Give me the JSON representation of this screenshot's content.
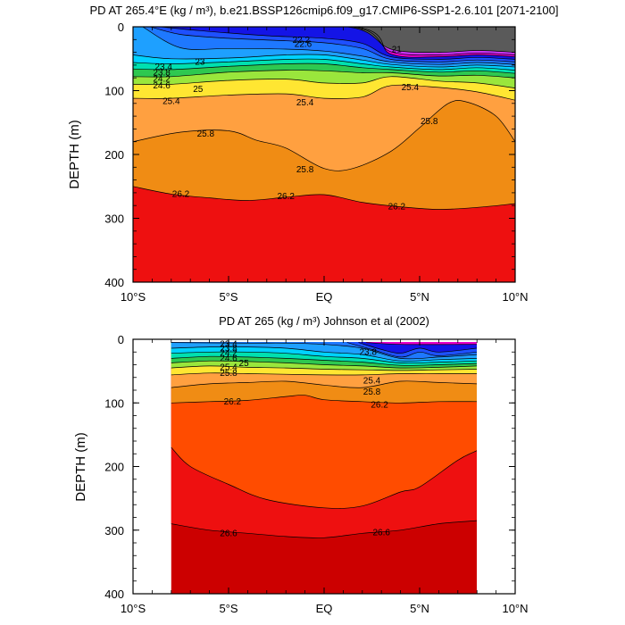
{
  "chart_data": [
    {
      "type": "contour",
      "title": "PD AT 265.4°E (kg / m³), b.e21.BSSP126cmip6.f09_g17.CMIP6-SSP1-2.6.101 [2071-2100]",
      "ylabel": "DEPTH (m)",
      "xlabel": "",
      "xlim": [
        -10,
        10
      ],
      "ylim": [
        0,
        400
      ],
      "y_inverted": true,
      "x_tick_labels": [
        "10°S",
        "5°S",
        "EQ",
        "5°N",
        "10°N"
      ],
      "y_tick_labels": [
        "0",
        "100",
        "200",
        "300",
        "400"
      ],
      "contour_levels": [
        21,
        21.4,
        21.8,
        22.2,
        22.6,
        23,
        23.4,
        23.8,
        24.2,
        24.6,
        25,
        25.4,
        25.8,
        26.2
      ],
      "data_extent": {
        "lon_min": -10,
        "lon_max": 10
      },
      "isopycnals": [
        {
          "level": 21,
          "lat": [
            -6.2,
            1.2,
            3.5,
            6,
            8,
            10
          ],
          "depth": [
            0,
            0,
            35,
            40,
            37,
            40
          ]
        },
        {
          "level": 21.4,
          "lat": [
            -7.2,
            1.4,
            3.5,
            6,
            8,
            10
          ],
          "depth": [
            0,
            0,
            39,
            44,
            41,
            44
          ]
        },
        {
          "level": 21.8,
          "lat": [
            -8,
            1.6,
            3.5,
            6,
            8,
            10
          ],
          "depth": [
            0,
            0,
            43,
            47,
            44,
            47
          ]
        },
        {
          "level": 22.2,
          "lat": [
            -8.6,
            -6.5,
            -3,
            0,
            2,
            3.5,
            6,
            8,
            10
          ],
          "depth": [
            0,
            6,
            14,
            18,
            26,
            47,
            51,
            48,
            51
          ]
        },
        {
          "level": 22.6,
          "lat": [
            -9.1,
            -7.5,
            -5,
            -2,
            0,
            2,
            3.5,
            6,
            8,
            10
          ],
          "depth": [
            0,
            12,
            18,
            22,
            25,
            34,
            51,
            55,
            52,
            55
          ]
        },
        {
          "level": 23,
          "lat": [
            -9.5,
            -7.5,
            -5,
            -2,
            0,
            2,
            3.5,
            6,
            8,
            10
          ],
          "depth": [
            0,
            33,
            34,
            35,
            38,
            46,
            55,
            59,
            56,
            59
          ]
        },
        {
          "level": 23.4,
          "lat": [
            -10,
            -8,
            -5,
            -2,
            0,
            2,
            3.5,
            6,
            8,
            10
          ],
          "depth": [
            44,
            50,
            49,
            44,
            44,
            52,
            59,
            63,
            60,
            63
          ]
        },
        {
          "level": 23.8,
          "lat": [
            -10,
            -8,
            -5,
            -2,
            0,
            2,
            3.5,
            6,
            8,
            10
          ],
          "depth": [
            56,
            58,
            55,
            51,
            51,
            58,
            63,
            67,
            64,
            68
          ]
        },
        {
          "level": 24.2,
          "lat": [
            -10,
            -8,
            -5,
            -2,
            0,
            2,
            3.5,
            6,
            8,
            10
          ],
          "depth": [
            66,
            67,
            62,
            58,
            58,
            64,
            67,
            71,
            69,
            73
          ]
        },
        {
          "level": 24.6,
          "lat": [
            -10,
            -8,
            -5,
            -2,
            0,
            2,
            3.5,
            6,
            8,
            10
          ],
          "depth": [
            78,
            78,
            71,
            68,
            69,
            72,
            72,
            77,
            76,
            80
          ]
        },
        {
          "level": 25,
          "lat": [
            -10,
            -8,
            -5,
            -2,
            0,
            2,
            3.5,
            6,
            8,
            10
          ],
          "depth": [
            90,
            90,
            84,
            82,
            88,
            88,
            78,
            85,
            88,
            96
          ]
        },
        {
          "level": 25.4,
          "lat": [
            -10,
            -8,
            -5,
            -2,
            0,
            2,
            3.5,
            6,
            8,
            10
          ],
          "depth": [
            112,
            112,
            107,
            105,
            112,
            110,
            92,
            95,
            102,
            115
          ]
        },
        {
          "level": 25.8,
          "lat": [
            -10,
            -7.5,
            -5,
            -3.5,
            -2,
            0,
            1.5,
            3.5,
            5,
            6.5,
            7.5,
            9,
            10
          ],
          "depth": [
            180,
            165,
            163,
            178,
            190,
            222,
            222,
            195,
            158,
            120,
            118,
            140,
            180
          ]
        },
        {
          "level": 26.2,
          "lat": [
            -10,
            -8,
            -6,
            -4,
            -2,
            0,
            2,
            4,
            6,
            8,
            10
          ],
          "depth": [
            250,
            262,
            268,
            272,
            267,
            263,
            275,
            282,
            286,
            283,
            277
          ]
        }
      ],
      "labels": [
        {
          "text": "22.2",
          "lat": -1.2,
          "depth": 21
        },
        {
          "text": "22.6",
          "lat": -1.1,
          "depth": 27
        },
        {
          "text": "23",
          "lat": -6.5,
          "depth": 55
        },
        {
          "text": "23.4",
          "lat": -8.4,
          "depth": 63
        },
        {
          "text": "23.8",
          "lat": -8.5,
          "depth": 72
        },
        {
          "text": "24.2",
          "lat": -8.5,
          "depth": 82
        },
        {
          "text": "24.6",
          "lat": -8.5,
          "depth": 92
        },
        {
          "text": "25",
          "lat": -6.6,
          "depth": 98
        },
        {
          "text": "25.4",
          "lat": -8,
          "depth": 117
        },
        {
          "text": "25.4",
          "lat": -1,
          "depth": 119
        },
        {
          "text": "25.4",
          "lat": 4.5,
          "depth": 95
        },
        {
          "text": "25.8",
          "lat": -6.2,
          "depth": 168
        },
        {
          "text": "25.8",
          "lat": -1,
          "depth": 224
        },
        {
          "text": "25.8",
          "lat": 5.5,
          "depth": 148
        },
        {
          "text": "26.2",
          "lat": -7.5,
          "depth": 262
        },
        {
          "text": "26.2",
          "lat": -2,
          "depth": 266
        },
        {
          "text": "26.2",
          "lat": 3.8,
          "depth": 282
        },
        {
          "text": "21",
          "lat": 3.8,
          "depth": 36
        }
      ]
    },
    {
      "type": "contour",
      "title": "PD AT 265 (kg / m³) Johnson et al (2002)",
      "ylabel": "DEPTH (m)",
      "xlabel": "",
      "xlim": [
        -10,
        10
      ],
      "ylim": [
        0,
        400
      ],
      "y_inverted": true,
      "x_tick_labels": [
        "10°S",
        "5°S",
        "EQ",
        "5°N",
        "10°N"
      ],
      "y_tick_labels": [
        "0",
        "100",
        "200",
        "300",
        "400"
      ],
      "contour_levels": [
        21,
        21.4,
        21.8,
        22.2,
        22.6,
        23,
        23.4,
        23.8,
        24.2,
        24.6,
        25,
        25.4,
        25.8,
        26.2,
        26.6,
        27
      ],
      "data_extent": {
        "lon_min": -8,
        "lon_max": 8,
        "depth_min": 5
      },
      "isopycnals": [
        {
          "level": 21.8,
          "lat": [
            2.2,
            4,
            8
          ],
          "depth": [
            5,
            8,
            8
          ]
        },
        {
          "level": 22.2,
          "lat": [
            1.8,
            3,
            4,
            5,
            6,
            8
          ],
          "depth": [
            5,
            16,
            22,
            14,
            20,
            14
          ]
        },
        {
          "level": 22.6,
          "lat": [
            1.2,
            2.5,
            4,
            5,
            6,
            8
          ],
          "depth": [
            5,
            16,
            28,
            20,
            26,
            20
          ]
        },
        {
          "level": 23,
          "lat": [
            -8,
            -4,
            -2,
            0,
            2,
            4,
            6,
            8
          ],
          "depth": [
            5,
            6,
            6,
            8,
            14,
            30,
            28,
            24
          ]
        },
        {
          "level": 23.4,
          "lat": [
            -8,
            -6,
            -4,
            -2,
            0,
            2,
            4,
            6,
            8
          ],
          "depth": [
            14,
            12,
            12,
            14,
            20,
            24,
            34,
            32,
            30
          ]
        },
        {
          "level": 23.8,
          "lat": [
            -8,
            -6,
            -4,
            -2,
            0,
            2,
            4,
            6,
            8
          ],
          "depth": [
            22,
            20,
            20,
            22,
            27,
            30,
            37,
            36,
            34
          ]
        },
        {
          "level": 24.2,
          "lat": [
            -8,
            -6,
            -4,
            -2,
            0,
            2,
            4,
            6,
            8
          ],
          "depth": [
            30,
            27,
            28,
            30,
            33,
            36,
            41,
            40,
            38
          ]
        },
        {
          "level": 24.6,
          "lat": [
            -8,
            -6,
            -4,
            -2,
            0,
            2,
            4,
            6,
            8
          ],
          "depth": [
            37,
            34,
            35,
            37,
            40,
            42,
            45,
            44,
            42
          ]
        },
        {
          "level": 25,
          "lat": [
            -8,
            -6,
            -4,
            -2,
            0,
            2,
            4,
            6,
            8
          ],
          "depth": [
            45,
            42,
            44,
            45,
            47,
            48,
            49,
            48,
            47
          ]
        },
        {
          "level": 25.4,
          "lat": [
            -8,
            -6,
            -4,
            -2,
            0,
            2,
            4,
            6,
            8
          ],
          "depth": [
            56,
            53,
            54,
            55,
            56,
            56,
            54,
            54,
            54
          ]
        },
        {
          "level": 25.8,
          "lat": [
            -8,
            -6,
            -4,
            -2,
            0,
            2,
            4,
            6,
            8
          ],
          "depth": [
            76,
            70,
            68,
            66,
            72,
            76,
            66,
            68,
            70
          ]
        },
        {
          "level": 26.2,
          "lat": [
            -8,
            -6,
            -4,
            -2,
            -1,
            0,
            2,
            4,
            6,
            8
          ],
          "depth": [
            100,
            98,
            96,
            90,
            88,
            95,
            98,
            100,
            98,
            98
          ]
        },
        {
          "level": 26.6,
          "lat": [
            -8,
            -7,
            -5,
            -3,
            0,
            2,
            4,
            5,
            7,
            8
          ],
          "depth": [
            170,
            200,
            228,
            252,
            265,
            262,
            240,
            232,
            190,
            175
          ]
        },
        {
          "level": 27,
          "lat": [
            -8,
            -6,
            -4,
            -2,
            0,
            2,
            4,
            6,
            8
          ],
          "depth": [
            290,
            300,
            305,
            310,
            312,
            305,
            300,
            290,
            285
          ]
        }
      ],
      "labels": [
        {
          "text": "23.4",
          "lat": -5,
          "depth": 8
        },
        {
          "text": "23.8",
          "lat": -5,
          "depth": 15
        },
        {
          "text": "24.2",
          "lat": -5,
          "depth": 22
        },
        {
          "text": "24.6",
          "lat": -5,
          "depth": 30
        },
        {
          "text": "25",
          "lat": -4.2,
          "depth": 38
        },
        {
          "text": "25.4",
          "lat": -5,
          "depth": 44
        },
        {
          "text": "25.8",
          "lat": -5,
          "depth": 53
        },
        {
          "text": "26.2",
          "lat": -4.8,
          "depth": 98
        },
        {
          "text": "26.2",
          "lat": 2.9,
          "depth": 103
        },
        {
          "text": "26.6",
          "lat": -5,
          "depth": 305
        },
        {
          "text": "26.6",
          "lat": 3,
          "depth": 304
        },
        {
          "text": "25.4",
          "lat": 2.5,
          "depth": 65
        },
        {
          "text": "25.8",
          "lat": 2.5,
          "depth": 83
        },
        {
          "text": "23.8",
          "lat": 2.3,
          "depth": 20
        }
      ]
    }
  ],
  "palette": {
    "21": "#5a5a5a",
    "21.4": "#cc33ff",
    "21.8": "#e600cc",
    "22.2": "#1414e6",
    "22.6": "#1e50ff",
    "23": "#1e78ff",
    "23.4": "#1ea0ff",
    "23.8": "#00d2ff",
    "24.2": "#00e0b0",
    "24.6": "#2ec850",
    "25": "#9ae63c",
    "25.4": "#ffe632",
    "25.8": "#ffa040",
    "26.2": "#f08c14",
    "26.6": "#ff4c00",
    "27": "#ee1010",
    "deep": "#cc0000"
  }
}
